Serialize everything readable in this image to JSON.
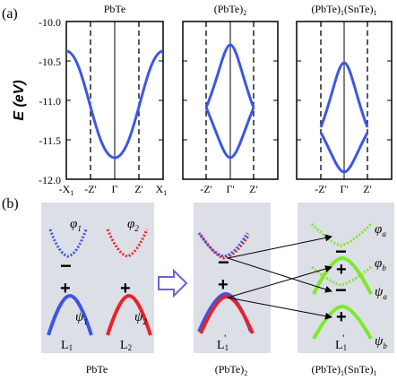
{
  "panel_a": {
    "label": "(a)",
    "ylabel": "E (eV)",
    "y_ticks": [
      "-10.0",
      "-10.5",
      "-11.0",
      "-11.5",
      "-12.0"
    ],
    "ylim": [
      -12.0,
      -10.0
    ],
    "plots": [
      {
        "title": "PbTe",
        "x_ticks": [
          "-X",
          "-Z'",
          "Γ",
          "Z'",
          "X"
        ],
        "x_tick_subs": [
          "1",
          "",
          "",
          "",
          "1"
        ]
      },
      {
        "title_main": "(PbTe)",
        "title_sub": "2",
        "x_ticks": [
          "-Z'",
          "Γ'",
          "Z'"
        ]
      },
      {
        "title_parts": [
          "(PbTe)",
          "1",
          "(SnTe)",
          "1"
        ],
        "x_ticks": [
          "-Z'",
          "Γ'",
          "Z'"
        ]
      }
    ]
  },
  "chart_data": [
    {
      "type": "line",
      "title": "PbTe",
      "ylabel": "E (eV)",
      "ylim": [
        -12.0,
        -10.0
      ],
      "x_ticks": [
        "-X1",
        "-Z'",
        "Γ",
        "Z'",
        "X1"
      ],
      "series": [
        {
          "x": [
            -1.0,
            -0.75,
            -0.5,
            -0.25,
            0,
            0.25,
            0.5,
            0.75,
            1.0
          ],
          "y": [
            -10.38,
            -10.55,
            -11.09,
            -11.6,
            -11.82,
            -11.6,
            -11.09,
            -10.55,
            -10.38
          ]
        }
      ]
    },
    {
      "type": "line",
      "title": "(PbTe)2",
      "ylabel": "E (eV)",
      "ylim": [
        -12.0,
        -10.0
      ],
      "x_ticks": [
        "-Z'",
        "Γ'",
        "Z'"
      ],
      "series": [
        {
          "x": [
            -1.0,
            -0.5,
            0,
            0.5,
            1.0
          ],
          "y": [
            -11.09,
            -10.55,
            -10.3,
            -10.55,
            -11.09
          ]
        },
        {
          "x": [
            -1.0,
            -0.5,
            0,
            0.5,
            1.0
          ],
          "y": [
            -11.09,
            -11.6,
            -11.82,
            -11.6,
            -11.09
          ]
        }
      ]
    },
    {
      "type": "line",
      "title": "(PbTe)1(SnTe)1",
      "ylabel": "E (eV)",
      "ylim": [
        -12.0,
        -10.0
      ],
      "x_ticks": [
        "-Z'",
        "Γ'",
        "Z'"
      ],
      "series": [
        {
          "x": [
            -1.0,
            -0.5,
            0,
            0.5,
            1.0
          ],
          "y": [
            -11.33,
            -10.77,
            -10.52,
            -10.77,
            -11.33
          ]
        },
        {
          "x": [
            -1.0,
            -0.5,
            0,
            0.5,
            1.0
          ],
          "y": [
            -11.47,
            -11.82,
            -12.0,
            -11.82,
            -11.47
          ]
        }
      ]
    }
  ],
  "panel_b": {
    "label": "(b)",
    "box1": {
      "phi1": "φ",
      "phi1_sub": "1",
      "phi2": "φ",
      "phi2_sub": "2",
      "psi1": "ψ",
      "psi1_sub": "1",
      "psi2": "ψ",
      "psi2_sub": "2",
      "L1": "L",
      "L1_sub": "1",
      "L2": "L",
      "L2_sub": "2",
      "caption": "PbTe"
    },
    "box2": {
      "label": "L",
      "label_sub": "1",
      "label_prime": "'",
      "caption_main": "(PbTe)",
      "caption_sub": "2"
    },
    "box3": {
      "phi_a": "φ",
      "phi_a_sub": "a",
      "phi_b": "φ",
      "phi_b_sub": "b",
      "psi_a": "ψ",
      "psi_a_sub": "a",
      "psi_b": "ψ",
      "psi_b_sub": "b",
      "label": "L",
      "label_sub": "1",
      "label_prime": "'",
      "caption_parts": [
        "(PbTe)",
        "1",
        "(SnTe)",
        "1"
      ]
    },
    "signs": {
      "minus": "−",
      "plus": "+"
    },
    "colors": {
      "blue": "#3d55e6",
      "red": "#e8222a",
      "green": "#7ee82a",
      "box_bg": "#dcdfe6",
      "arrow_outline": "#6a62d8"
    }
  }
}
